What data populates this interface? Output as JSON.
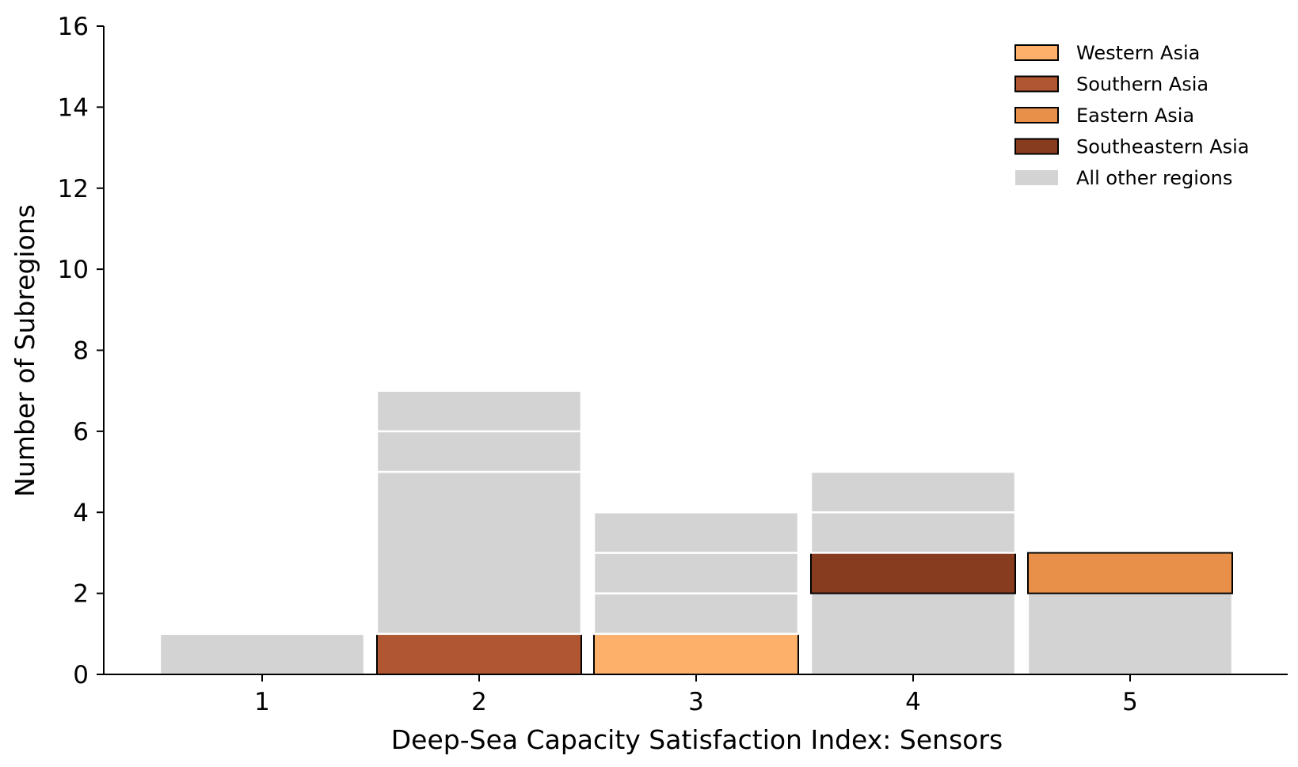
{
  "chart_data": {
    "type": "bar",
    "variant": "stacked-histogram",
    "xlabel": "Deep-Sea Capacity Satisfaction Index: Sensors",
    "ylabel": "Number of Subregions",
    "categories": [
      "1",
      "2",
      "3",
      "4",
      "5"
    ],
    "x_ticks": [
      "1",
      "2",
      "3",
      "4",
      "5"
    ],
    "y_ticks": [
      "0",
      "2",
      "4",
      "6",
      "8",
      "10",
      "12",
      "14",
      "16"
    ],
    "ylim": [
      0,
      16
    ],
    "grid": false,
    "legend_position": "top-right",
    "segment_order": "bottom-to-top",
    "stacks": [
      {
        "category": "1",
        "segments": [
          {
            "series": "All other regions",
            "value": 1
          }
        ]
      },
      {
        "category": "2",
        "segments": [
          {
            "series": "Southern Asia",
            "value": 1
          },
          {
            "series": "All other regions",
            "value": 4
          },
          {
            "series": "All other regions",
            "value": 1
          },
          {
            "series": "All other regions",
            "value": 1
          }
        ]
      },
      {
        "category": "3",
        "segments": [
          {
            "series": "Western Asia",
            "value": 1
          },
          {
            "series": "All other regions",
            "value": 1
          },
          {
            "series": "All other regions",
            "value": 1
          },
          {
            "series": "All other regions",
            "value": 1
          }
        ]
      },
      {
        "category": "4",
        "segments": [
          {
            "series": "All other regions",
            "value": 2
          },
          {
            "series": "Southeastern Asia",
            "value": 1
          },
          {
            "series": "All other regions",
            "value": 1
          },
          {
            "series": "All other regions",
            "value": 1
          }
        ]
      },
      {
        "category": "5",
        "segments": [
          {
            "series": "All other regions",
            "value": 2
          },
          {
            "series": "Eastern Asia",
            "value": 1
          }
        ]
      }
    ],
    "series": [
      {
        "name": "Western Asia",
        "color": "#fdb06a",
        "outlined": true
      },
      {
        "name": "Southern Asia",
        "color": "#b05632",
        "outlined": true
      },
      {
        "name": "Eastern Asia",
        "color": "#e8904a",
        "outlined": true
      },
      {
        "name": "Southeastern Asia",
        "color": "#873b1f",
        "outlined": true
      },
      {
        "name": "All other regions",
        "color": "#d3d3d3",
        "outlined": false
      }
    ]
  }
}
